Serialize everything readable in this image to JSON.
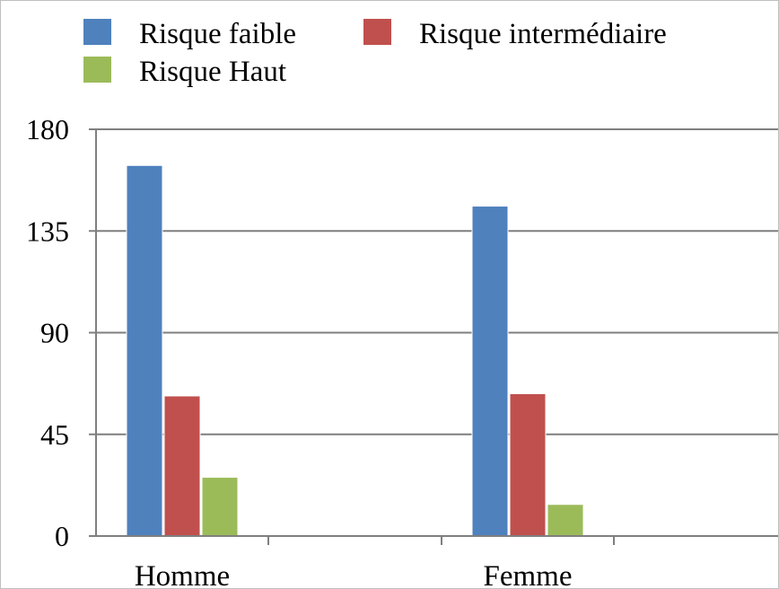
{
  "chart_data": {
    "type": "bar",
    "categories": [
      "Homme",
      "Femme"
    ],
    "series": [
      {
        "name": "Risque faible",
        "color": "#4f81bd",
        "values": [
          164,
          146
        ]
      },
      {
        "name": "Risque intermédiaire",
        "color": "#c0504d",
        "values": [
          62,
          63
        ]
      },
      {
        "name": "Risque Haut",
        "color": "#9bbb59",
        "values": [
          26,
          14
        ]
      }
    ],
    "ylim": [
      0,
      180
    ],
    "yticks": [
      "0",
      "45",
      "90",
      "135",
      "180"
    ],
    "grid": true,
    "legend": "top"
  }
}
